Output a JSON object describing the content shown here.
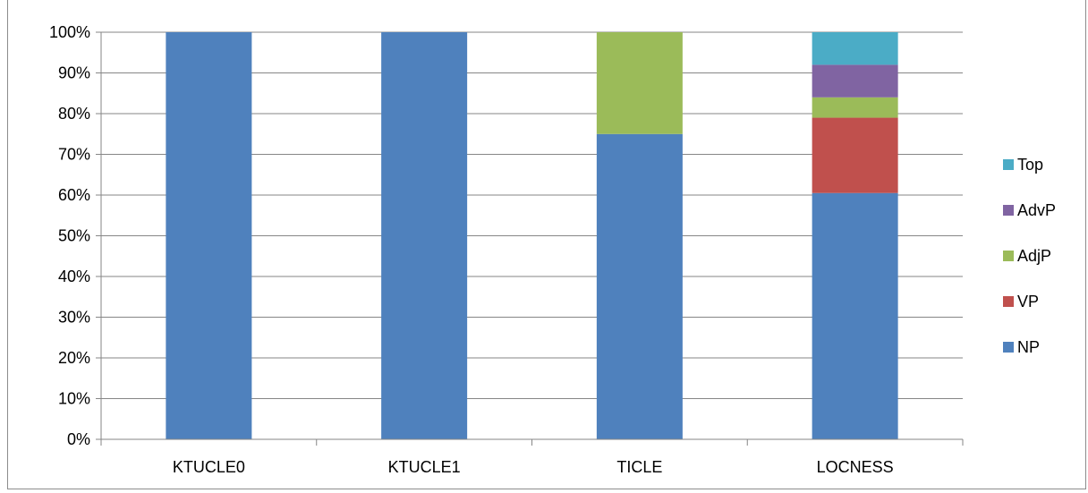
{
  "chart_data": {
    "type": "bar",
    "stacked": true,
    "percent_stacked": true,
    "categories": [
      "KTUCLE0",
      "KTUCLE1",
      "TICLE",
      "LOCNESS"
    ],
    "series": [
      {
        "name": "NP",
        "color": "#4f81bd",
        "values": [
          100,
          100,
          75,
          60.5
        ]
      },
      {
        "name": "VP",
        "color": "#c0504d",
        "values": [
          0,
          0,
          0,
          18.5
        ]
      },
      {
        "name": "AdjP",
        "color": "#9bbb59",
        "values": [
          0,
          0,
          25,
          5
        ]
      },
      {
        "name": "AdvP",
        "color": "#8064a2",
        "values": [
          0,
          0,
          0,
          8
        ]
      },
      {
        "name": "Top",
        "color": "#4bacc6",
        "values": [
          0,
          0,
          0,
          8
        ]
      }
    ],
    "y_ticks": [
      "0%",
      "10%",
      "20%",
      "30%",
      "40%",
      "50%",
      "60%",
      "70%",
      "80%",
      "90%",
      "100%"
    ],
    "ylim": [
      0,
      100
    ],
    "grid": true,
    "legend_position": "right",
    "legend_order": [
      "Top",
      "AdvP",
      "AdjP",
      "VP",
      "NP"
    ],
    "title": "",
    "xlabel": "",
    "ylabel": ""
  }
}
